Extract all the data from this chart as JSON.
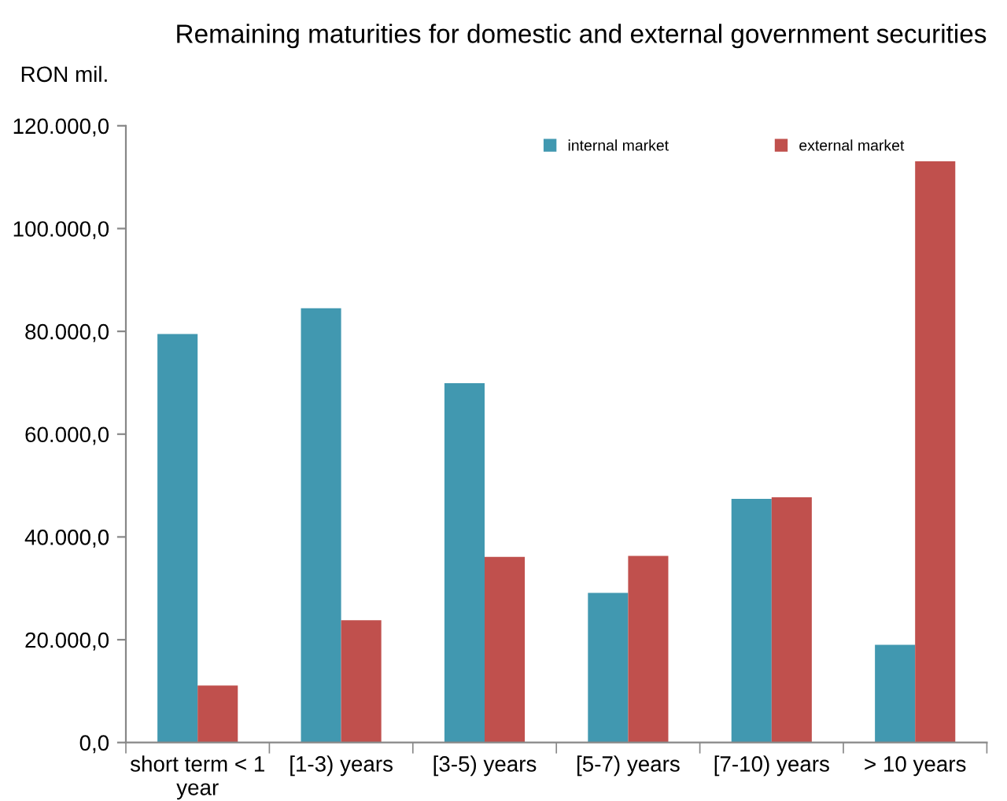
{
  "chart_data": {
    "type": "bar",
    "title": "Remaining maturities for domestic and external government securities",
    "ylabel": "RON mil.",
    "categories": [
      "short term < 1 year",
      "[1-3) years",
      "[3-5) years",
      "[5-7) years",
      "[7-10) years",
      "> 10 years"
    ],
    "series": [
      {
        "name": "internal market",
        "color": "#4198b0",
        "values": [
          79500,
          84500,
          69900,
          29100,
          47400,
          19000
        ]
      },
      {
        "name": "external market",
        "color": "#c0504d",
        "values": [
          11100,
          23800,
          36100,
          36300,
          47700,
          113100
        ]
      }
    ],
    "ylim": [
      0,
      120000
    ],
    "yticks": [
      {
        "value": 0,
        "label": "0,0"
      },
      {
        "value": 20000,
        "label": "20.000,0"
      },
      {
        "value": 40000,
        "label": "40.000,0"
      },
      {
        "value": 60000,
        "label": "60.000,0"
      },
      {
        "value": 80000,
        "label": "80.000,0"
      },
      {
        "value": 100000,
        "label": "100.000,0"
      },
      {
        "value": 120000,
        "label": "120.000,0"
      }
    ],
    "grid": false,
    "legend": "top right"
  }
}
